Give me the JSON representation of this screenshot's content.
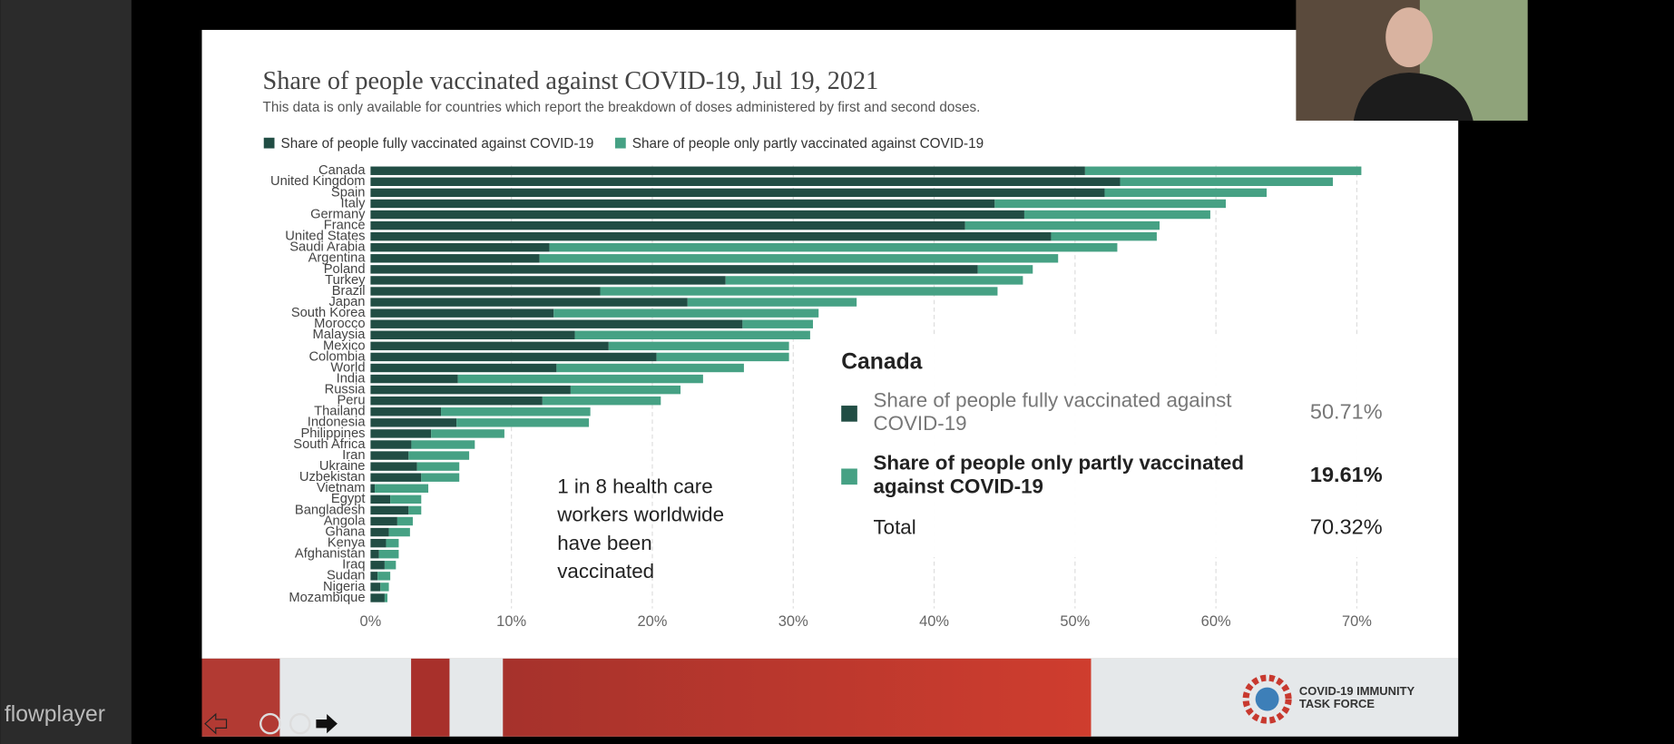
{
  "chart_data": {
    "type": "stacked-bar-horizontal",
    "title": "Share of people vaccinated against COVID-19, Jul 19, 2021",
    "subtitle": "This data is only available for countries which report the breakdown of doses administered by first and second doses.",
    "categories": [
      "Canada",
      "United Kingdom",
      "Spain",
      "Italy",
      "Germany",
      "France",
      "United States",
      "Saudi Arabia",
      "Argentina",
      "Poland",
      "Turkey",
      "Brazil",
      "Japan",
      "South Korea",
      "Morocco",
      "Malaysia",
      "Mexico",
      "Colombia",
      "World",
      "India",
      "Russia",
      "Peru",
      "Thailand",
      "Indonesia",
      "Philippines",
      "South Africa",
      "Iran",
      "Ukraine",
      "Uzbekistan",
      "Vietnam",
      "Egypt",
      "Bangladesh",
      "Angola",
      "Ghana",
      "Kenya",
      "Afghanistan",
      "Iraq",
      "Sudan",
      "Nigeria",
      "Mozambique"
    ],
    "series": [
      {
        "name": "Share of people fully vaccinated against COVID-19",
        "color": "#214d44",
        "values": [
          50.71,
          53.2,
          52.1,
          44.3,
          46.4,
          42.2,
          48.3,
          12.7,
          12.0,
          43.1,
          25.2,
          16.3,
          22.5,
          13.0,
          26.4,
          14.5,
          16.9,
          20.3,
          13.2,
          6.2,
          14.2,
          12.2,
          5.0,
          6.1,
          4.3,
          2.9,
          2.7,
          3.3,
          3.6,
          0.3,
          1.4,
          2.7,
          1.9,
          1.3,
          1.1,
          0.6,
          1.0,
          0.5,
          0.7,
          1.0
        ]
      },
      {
        "name": "Share of people only partly vaccinated against COVID-19",
        "color": "#46a184",
        "values": [
          19.61,
          15.1,
          11.5,
          16.4,
          13.2,
          13.8,
          7.5,
          40.3,
          36.8,
          3.9,
          21.1,
          28.2,
          12.0,
          18.8,
          5.0,
          16.7,
          12.8,
          9.4,
          13.3,
          17.4,
          7.8,
          8.4,
          10.6,
          9.4,
          5.2,
          4.5,
          4.3,
          3.0,
          2.7,
          3.8,
          2.2,
          0.9,
          1.1,
          1.5,
          0.9,
          1.4,
          0.8,
          0.9,
          0.6,
          0.2
        ]
      }
    ],
    "xlim": [
      0,
      70
    ],
    "xticks": [
      {
        "value": 0,
        "label": "0%"
      },
      {
        "value": 10,
        "label": "10%"
      },
      {
        "value": 20,
        "label": "20%"
      },
      {
        "value": 30,
        "label": "30%"
      },
      {
        "value": 40,
        "label": "40%"
      },
      {
        "value": 50,
        "label": "50%"
      },
      {
        "value": 60,
        "label": "60%"
      },
      {
        "value": 70,
        "label": "70%"
      }
    ],
    "grid": true,
    "legend": "top",
    "annotation": [
      "1 in 8 health care",
      "workers worldwide",
      "have been",
      "vaccinated"
    ],
    "tooltip": {
      "title": "Canada",
      "rows": [
        {
          "label": [
            "Share of people fully vaccinated against",
            "COVID-19"
          ],
          "value": "50.71%"
        },
        {
          "label": [
            "Share of people only partly vaccinated",
            "against COVID-19"
          ],
          "value": "19.61%"
        },
        {
          "label": [
            "Total"
          ],
          "value": "70.32%"
        }
      ]
    }
  },
  "footer": {
    "logo": [
      "COVID-19 IMMUNITY",
      "TASK FORCE"
    ]
  },
  "player": {
    "brand": "flowplayer"
  }
}
